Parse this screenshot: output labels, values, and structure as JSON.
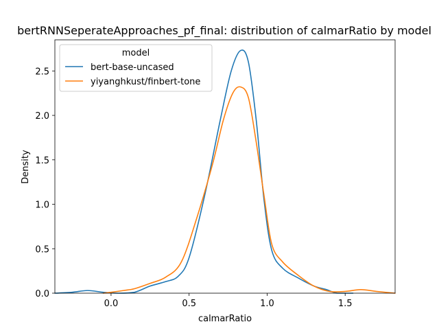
{
  "chart_data": {
    "type": "line",
    "title": "bertRNNSeperateApproaches_pf_final: distribution of calmarRatio by model",
    "xlabel": "calmarRatio",
    "ylabel": "Density",
    "xlim": [
      -0.36,
      1.82
    ],
    "ylim": [
      0,
      2.85
    ],
    "xticks": [
      0.0,
      0.5,
      1.0,
      1.5
    ],
    "xtick_labels": [
      "0.0",
      "0.5",
      "1.0",
      "1.5"
    ],
    "yticks": [
      0.0,
      0.5,
      1.0,
      1.5,
      2.0,
      2.5
    ],
    "ytick_labels": [
      "0.0",
      "0.5",
      "1.0",
      "1.5",
      "2.0",
      "2.5"
    ],
    "grid": false,
    "legend": {
      "title": "model",
      "position": "top-left"
    },
    "series": [
      {
        "name": "bert-base-uncased",
        "color": "#1f77b4",
        "points": [
          [
            -0.36,
            0.0
          ],
          [
            -0.25,
            0.01
          ],
          [
            -0.15,
            0.03
          ],
          [
            -0.05,
            0.01
          ],
          [
            0.05,
            0.0
          ],
          [
            0.15,
            0.01
          ],
          [
            0.25,
            0.08
          ],
          [
            0.35,
            0.13
          ],
          [
            0.43,
            0.19
          ],
          [
            0.5,
            0.4
          ],
          [
            0.6,
            1.1
          ],
          [
            0.7,
            1.95
          ],
          [
            0.77,
            2.5
          ],
          [
            0.83,
            2.73
          ],
          [
            0.88,
            2.6
          ],
          [
            0.93,
            1.95
          ],
          [
            0.98,
            1.05
          ],
          [
            1.03,
            0.48
          ],
          [
            1.1,
            0.28
          ],
          [
            1.2,
            0.17
          ],
          [
            1.3,
            0.08
          ],
          [
            1.38,
            0.04
          ],
          [
            1.45,
            0.0
          ],
          [
            1.55,
            0.0
          ]
        ]
      },
      {
        "name": "yiyanghkust/finbert-tone",
        "color": "#ff7f0e",
        "points": [
          [
            -0.05,
            0.0
          ],
          [
            0.0,
            0.01
          ],
          [
            0.08,
            0.03
          ],
          [
            0.15,
            0.05
          ],
          [
            0.25,
            0.11
          ],
          [
            0.35,
            0.18
          ],
          [
            0.45,
            0.35
          ],
          [
            0.55,
            0.85
          ],
          [
            0.65,
            1.45
          ],
          [
            0.72,
            1.95
          ],
          [
            0.78,
            2.25
          ],
          [
            0.83,
            2.32
          ],
          [
            0.88,
            2.2
          ],
          [
            0.93,
            1.7
          ],
          [
            0.98,
            1.1
          ],
          [
            1.03,
            0.55
          ],
          [
            1.1,
            0.35
          ],
          [
            1.2,
            0.2
          ],
          [
            1.3,
            0.08
          ],
          [
            1.4,
            0.02
          ],
          [
            1.5,
            0.02
          ],
          [
            1.6,
            0.04
          ],
          [
            1.7,
            0.02
          ],
          [
            1.82,
            0.0
          ]
        ]
      }
    ]
  }
}
